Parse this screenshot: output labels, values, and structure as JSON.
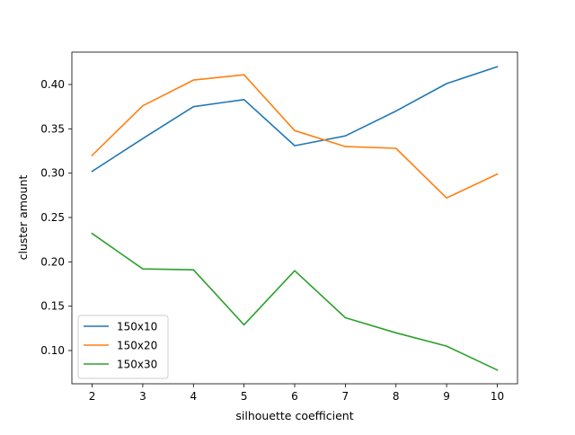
{
  "chart_data": {
    "type": "line",
    "title": "",
    "xlabel": "silhouette coefficient",
    "ylabel": "cluster amount",
    "x": [
      2,
      3,
      4,
      5,
      6,
      7,
      8,
      9,
      10
    ],
    "xticks": [
      "2",
      "3",
      "4",
      "5",
      "6",
      "7",
      "8",
      "9",
      "10"
    ],
    "yticks": [
      "0.10",
      "0.15",
      "0.20",
      "0.25",
      "0.30",
      "0.35",
      "0.40"
    ],
    "xlim": [
      1.6,
      10.4
    ],
    "ylim": [
      0.0625,
      0.4365
    ],
    "grid": false,
    "legend_position": "lower-left",
    "series": [
      {
        "name": "150x10",
        "color": "#1f77b4",
        "values": [
          0.302,
          0.339,
          0.375,
          0.383,
          0.331,
          0.342,
          0.37,
          0.401,
          0.42
        ]
      },
      {
        "name": "150x20",
        "color": "#ff7f0e",
        "values": [
          0.32,
          0.376,
          0.405,
          0.411,
          0.348,
          0.33,
          0.328,
          0.272,
          0.299
        ]
      },
      {
        "name": "150x30",
        "color": "#2ca02c",
        "values": [
          0.232,
          0.192,
          0.191,
          0.129,
          0.19,
          0.137,
          0.12,
          0.105,
          0.078
        ]
      }
    ]
  }
}
